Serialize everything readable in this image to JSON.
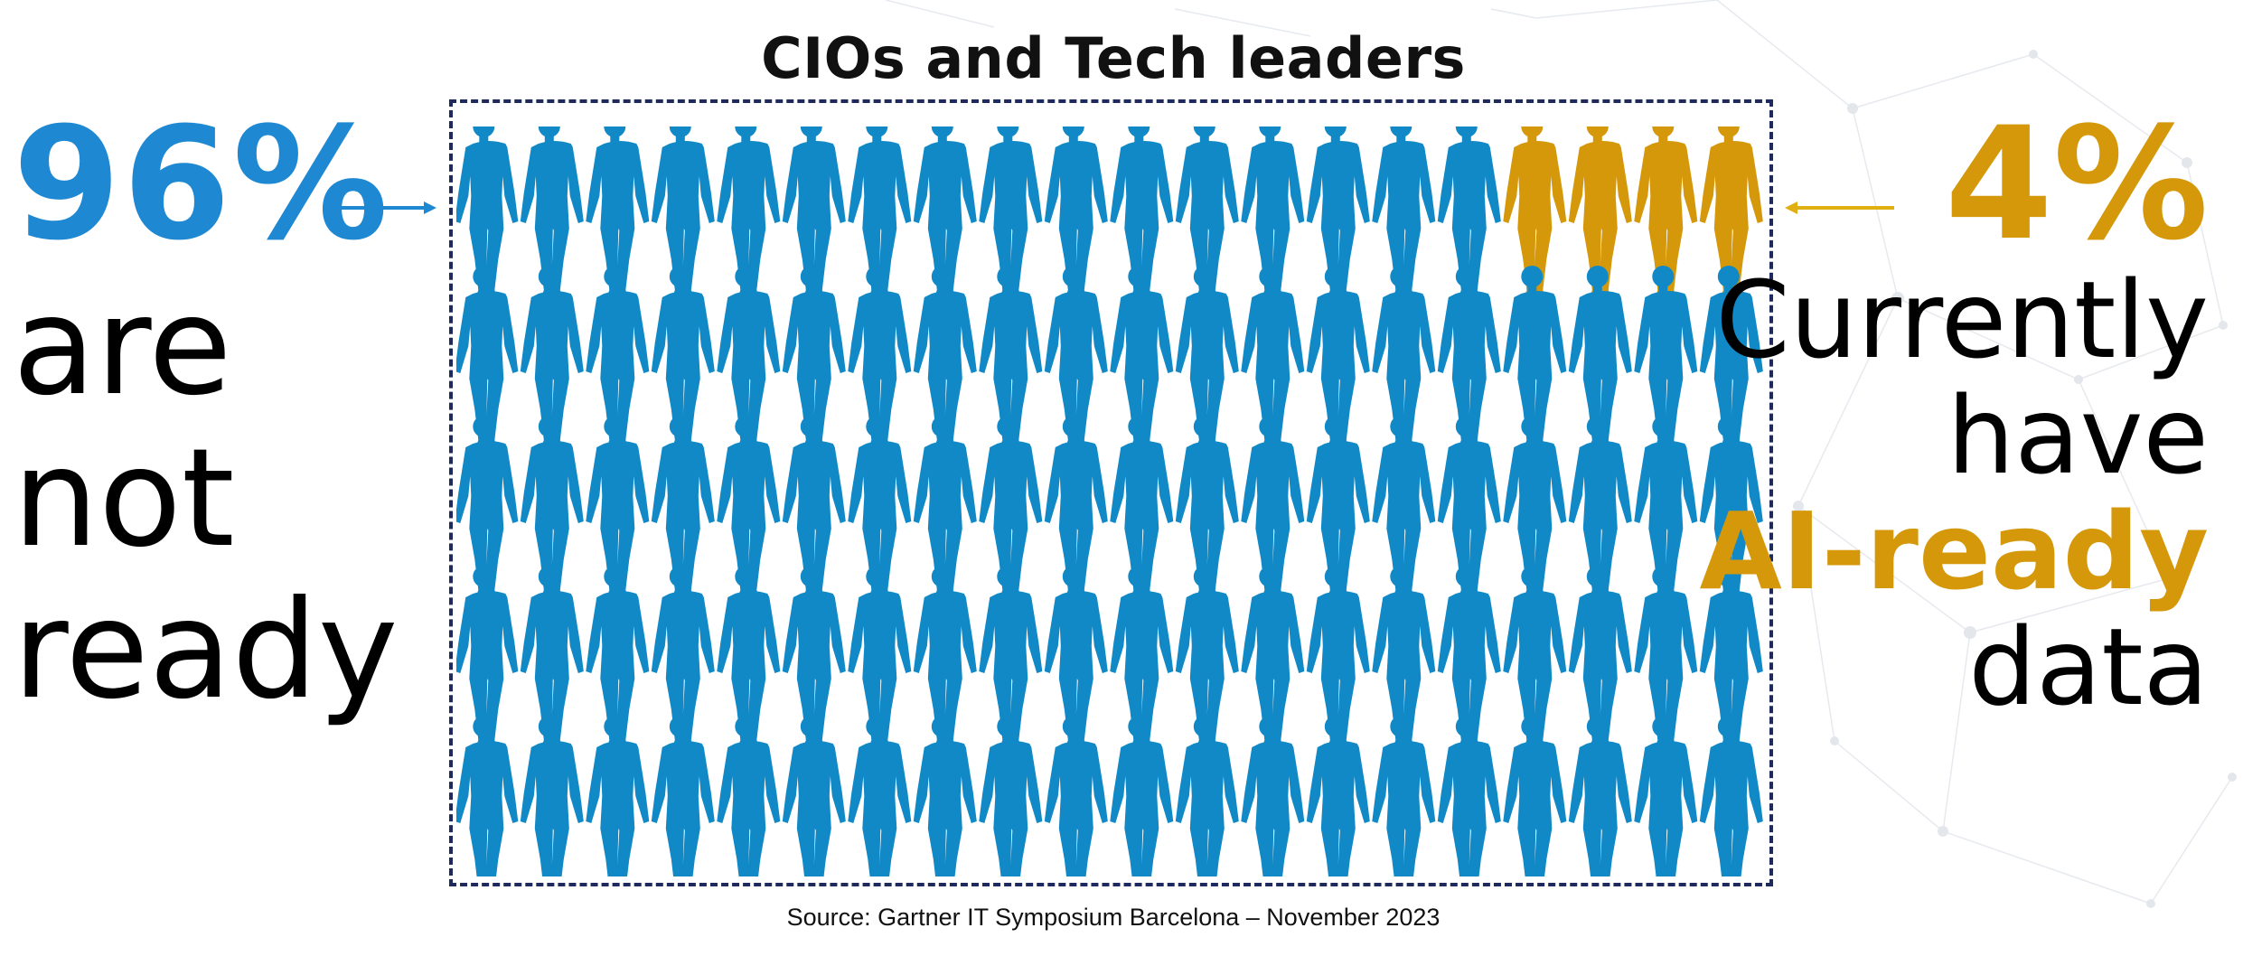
{
  "chart_data": {
    "type": "pictograph",
    "title": "CIOs and Tech leaders",
    "total_icons": 100,
    "rows": 5,
    "columns": 20,
    "series": [
      {
        "name": "are not ready",
        "value": 96,
        "color": "#1189c6"
      },
      {
        "name": "Currently have AI-ready data",
        "value": 4,
        "color": "#d4980a"
      }
    ],
    "highlight_position": "top-right"
  },
  "left_callout": {
    "percent": "96%",
    "color": "#1e88d2",
    "lines": [
      "are",
      "not",
      "ready"
    ]
  },
  "right_callout": {
    "percent": "4%",
    "color": "#d4980a",
    "line1": "Currently",
    "line2": "have",
    "line3": "AI-ready",
    "line4": "data"
  },
  "source": "Source: Gartner IT Symposium Barcelona – November 2023"
}
